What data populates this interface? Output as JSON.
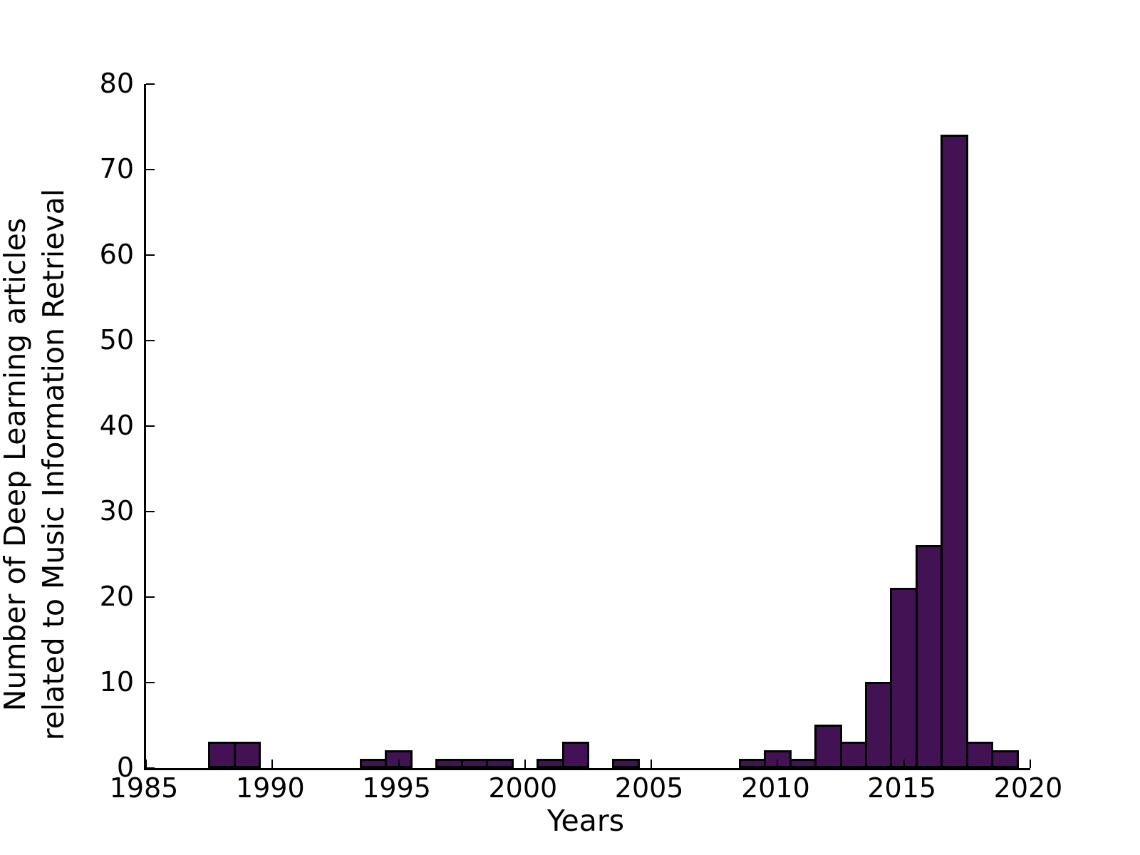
{
  "figure": {
    "background": "#ffffff",
    "xlabel": "Years",
    "ylabel_line1": "Number of Deep Learning articles",
    "ylabel_line2": "related to Music Information Retrieval"
  },
  "chart_data": {
    "type": "bar",
    "title": "",
    "xlabel": "Years",
    "ylabel": "Number of Deep Learning articles related to Music Information Retrieval",
    "xlim": [
      1985,
      2020
    ],
    "ylim": [
      0,
      80
    ],
    "x_ticks": [
      1985,
      1990,
      1995,
      2000,
      2005,
      2010,
      2015,
      2020
    ],
    "y_ticks": [
      0,
      10,
      20,
      30,
      40,
      50,
      60,
      70,
      80
    ],
    "bar_width_years": 1,
    "bar_color": "#421254",
    "bar_edge_color": "#000000",
    "grid": false,
    "legend": null,
    "bars": [
      {
        "year": 1988,
        "value": 3
      },
      {
        "year": 1989,
        "value": 3
      },
      {
        "year": 1994,
        "value": 1
      },
      {
        "year": 1995,
        "value": 2
      },
      {
        "year": 1997,
        "value": 1
      },
      {
        "year": 1998,
        "value": 1
      },
      {
        "year": 1999,
        "value": 1
      },
      {
        "year": 2001,
        "value": 1
      },
      {
        "year": 2002,
        "value": 3
      },
      {
        "year": 2004,
        "value": 1
      },
      {
        "year": 2009,
        "value": 1
      },
      {
        "year": 2010,
        "value": 2
      },
      {
        "year": 2011,
        "value": 1
      },
      {
        "year": 2012,
        "value": 5
      },
      {
        "year": 2013,
        "value": 3
      },
      {
        "year": 2014,
        "value": 10
      },
      {
        "year": 2015,
        "value": 21
      },
      {
        "year": 2016,
        "value": 26
      },
      {
        "year": 2017,
        "value": 74
      },
      {
        "year": 2018,
        "value": 3
      },
      {
        "year": 2019,
        "value": 2
      }
    ]
  }
}
